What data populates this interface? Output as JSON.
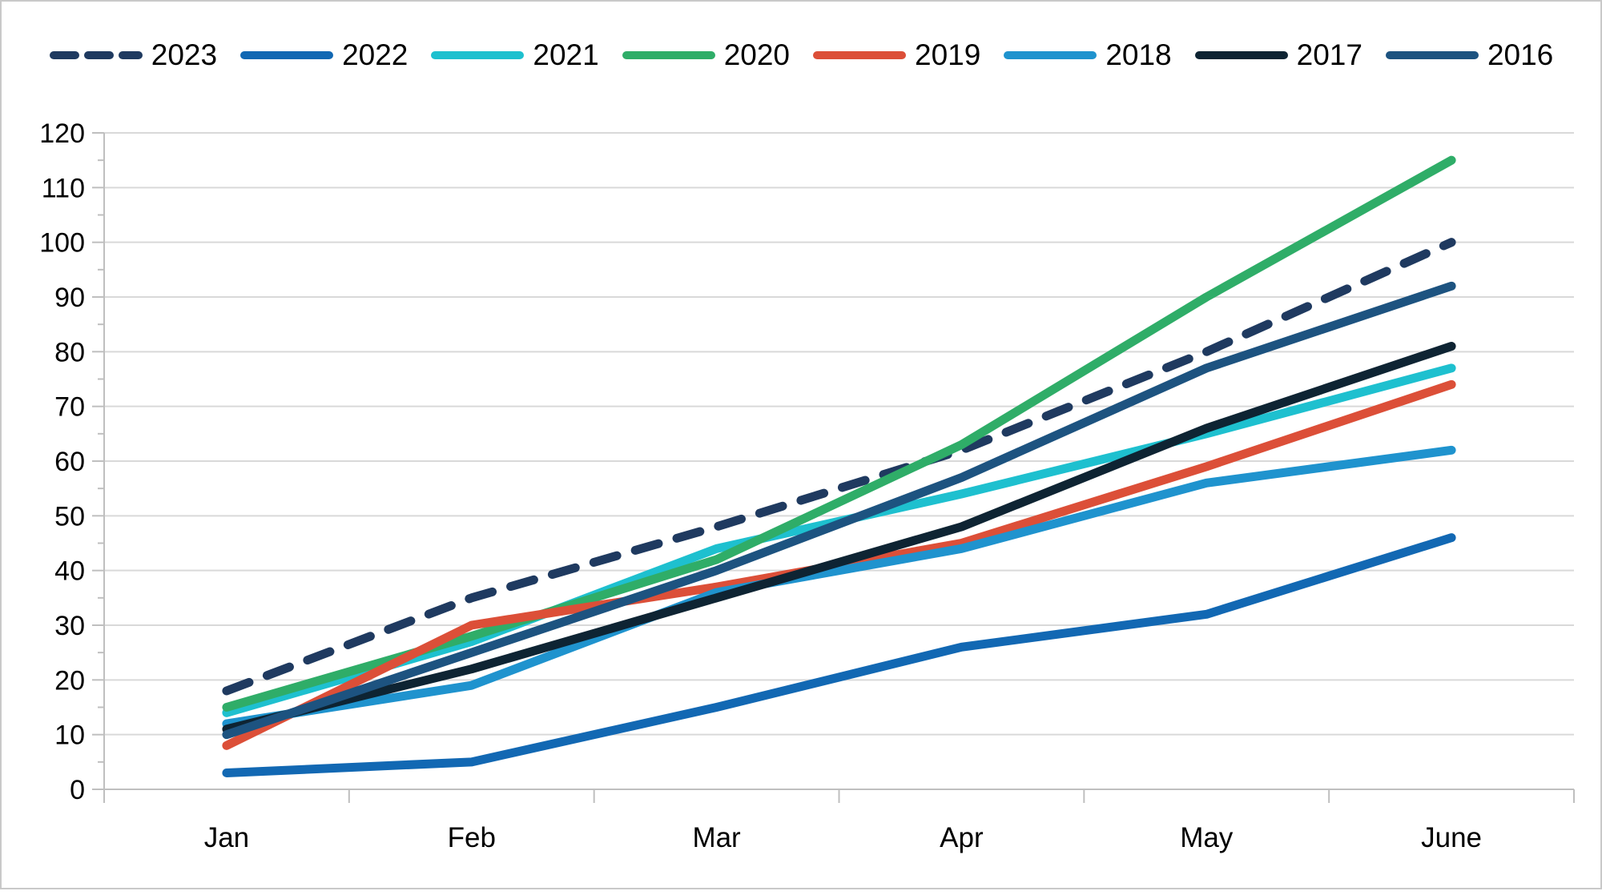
{
  "chart_data": {
    "type": "line",
    "title": "",
    "categories": [
      "Jan",
      "Feb",
      "Mar",
      "Apr",
      "May",
      "June"
    ],
    "series": [
      {
        "name": "2023",
        "color": "#1f3a60",
        "dash": true,
        "values": [
          18,
          35,
          48,
          62,
          80,
          100
        ]
      },
      {
        "name": "2022",
        "color": "#1268b3",
        "dash": false,
        "values": [
          3,
          5,
          15,
          26,
          32,
          46
        ]
      },
      {
        "name": "2021",
        "color": "#1ec0cf",
        "dash": false,
        "values": [
          14,
          27,
          44,
          54,
          65,
          77
        ]
      },
      {
        "name": "2020",
        "color": "#2fad68",
        "dash": false,
        "values": [
          15,
          28,
          42,
          63,
          90,
          115
        ]
      },
      {
        "name": "2019",
        "color": "#dc4f38",
        "dash": false,
        "values": [
          8,
          30,
          37,
          45,
          59,
          74
        ]
      },
      {
        "name": "2018",
        "color": "#1f93ce",
        "dash": false,
        "values": [
          12,
          19,
          36,
          44,
          56,
          62
        ]
      },
      {
        "name": "2017",
        "color": "#0e2433",
        "dash": false,
        "values": [
          11,
          22,
          35,
          48,
          66,
          81
        ]
      },
      {
        "name": "2016",
        "color": "#1d5380",
        "dash": false,
        "values": [
          10,
          25,
          40,
          57,
          77,
          92
        ]
      }
    ],
    "ylim": [
      0,
      120
    ],
    "ytick_step": 10,
    "y_tick_labels": [
      "0",
      "10",
      "20",
      "30",
      "40",
      "50",
      "60",
      "70",
      "80",
      "90",
      "100",
      "110",
      "120"
    ],
    "grid": "horizontal",
    "legend_position": "top",
    "legend_order": [
      "2023",
      "2022",
      "2021",
      "2020",
      "2019",
      "2018",
      "2017",
      "2016"
    ]
  },
  "style": {
    "gridline_color": "#d9d9d9",
    "axis_color": "#bfbfbf",
    "text_color": "#000000",
    "background": "#ffffff",
    "line_width": 11
  }
}
